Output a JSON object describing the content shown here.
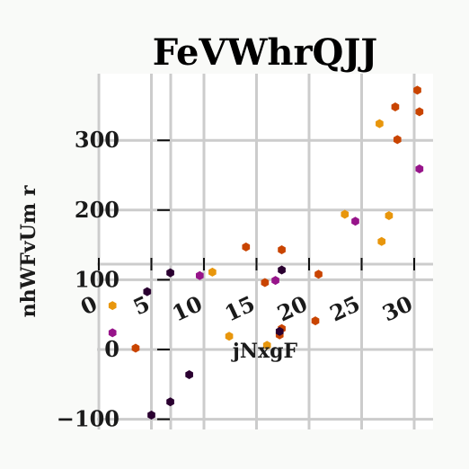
{
  "chart_data": {
    "type": "scatter",
    "title": "FeVWhrQJJ",
    "xlabel": "jNxgF",
    "ylabel": "nhWFvUm  r",
    "xlim": [
      0,
      32.5
    ],
    "ylim": [
      -115,
      395
    ],
    "xticks": [
      "0",
      "5",
      "10",
      "15",
      "20",
      "25",
      "30"
    ],
    "yticks": [
      "−100",
      "0",
      "100",
      "200",
      "300"
    ],
    "grid": true,
    "colors": [
      "#e8960c",
      "#c94400",
      "#97148a",
      "#2a0030"
    ],
    "series": [
      {
        "color": "#e8960c",
        "points": [
          [
            1.3,
            63
          ],
          [
            10.8,
            111
          ],
          [
            12.4,
            19
          ],
          [
            16.0,
            6
          ],
          [
            23.4,
            194
          ],
          [
            26.7,
            324
          ],
          [
            26.9,
            155
          ],
          [
            27.6,
            192
          ]
        ]
      },
      {
        "color": "#c94400",
        "points": [
          [
            3.5,
            2
          ],
          [
            14.0,
            147
          ],
          [
            15.8,
            96
          ],
          [
            17.2,
            21
          ],
          [
            17.4,
            143
          ],
          [
            17.4,
            30
          ],
          [
            20.6,
            41
          ],
          [
            20.9,
            108
          ],
          [
            28.2,
            348
          ],
          [
            28.4,
            301
          ],
          [
            30.3,
            372
          ],
          [
            30.5,
            341
          ]
        ]
      },
      {
        "color": "#97148a",
        "points": [
          [
            1.3,
            24
          ],
          [
            9.6,
            106
          ],
          [
            16.8,
            99
          ],
          [
            24.4,
            184
          ],
          [
            30.5,
            259
          ]
        ]
      },
      {
        "color": "#2a0030",
        "points": [
          [
            4.6,
            83
          ],
          [
            5.0,
            -94
          ],
          [
            6.8,
            110
          ],
          [
            6.8,
            -75
          ],
          [
            8.6,
            -36
          ],
          [
            17.2,
            26
          ],
          [
            17.4,
            114
          ]
        ]
      }
    ]
  }
}
